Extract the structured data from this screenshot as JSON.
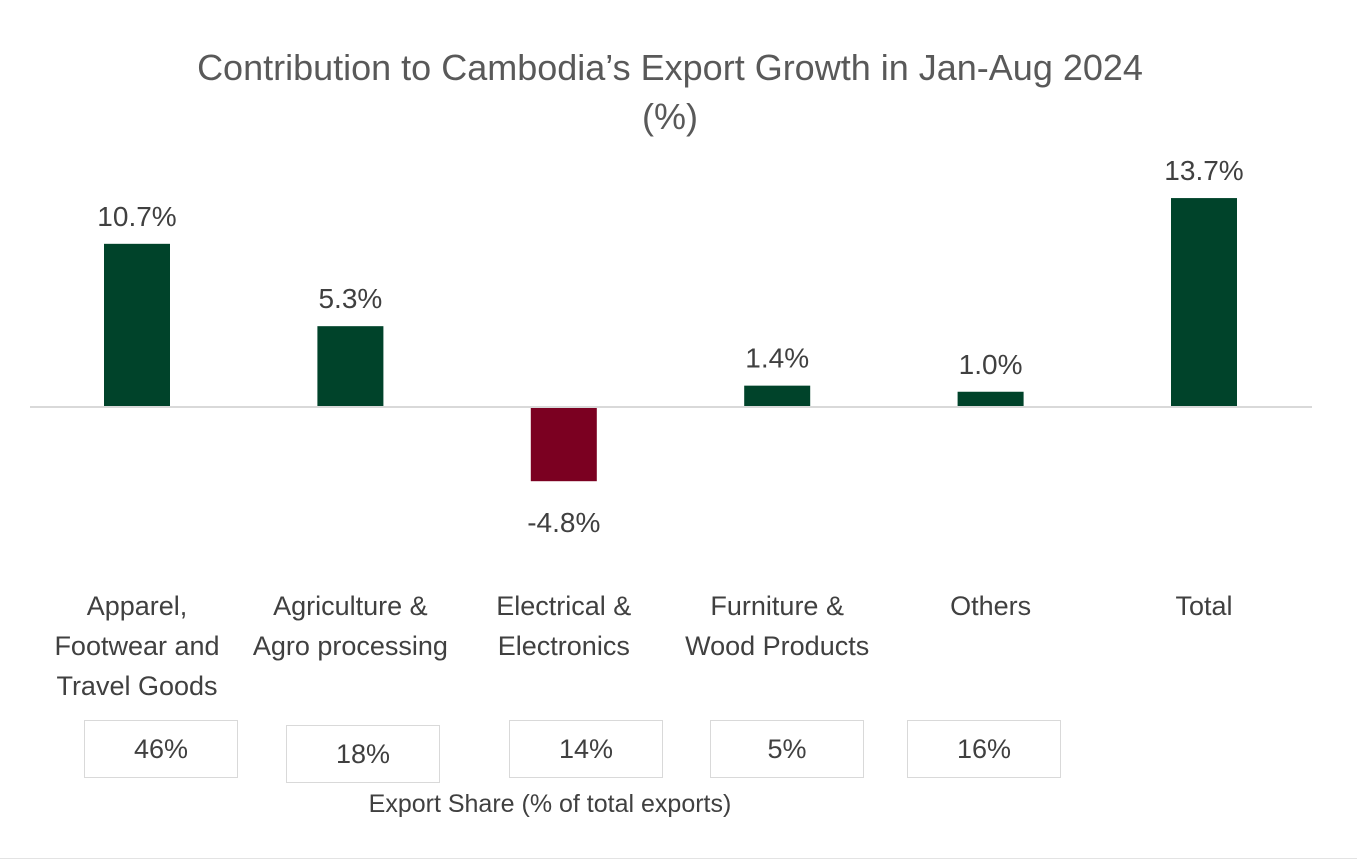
{
  "chart_data": {
    "type": "bar",
    "title_line1": "Contribution to Cambodia’s Export Growth in Jan-Aug 2024",
    "title_line2": "(%)",
    "categories": [
      "Apparel, Footwear and Travel Goods",
      "Agriculture & Agro processing",
      "Electrical & Electronics",
      "Furniture & Wood Products",
      "Others",
      "Total"
    ],
    "category_lines": [
      [
        "Apparel,",
        "Footwear and",
        "Travel Goods"
      ],
      [
        "Agriculture &",
        "Agro processing"
      ],
      [
        "Electrical &",
        "Electronics"
      ],
      [
        "Furniture &",
        "Wood Products"
      ],
      [
        "Others"
      ],
      [
        "Total"
      ]
    ],
    "values": [
      10.7,
      5.3,
      -4.8,
      1.4,
      1.0,
      13.7
    ],
    "data_labels": [
      "10.7%",
      "5.3%",
      "-4.8%",
      "1.4%",
      "1.0%",
      "13.7%"
    ],
    "positive_color": "#00432a",
    "negative_color": "#7b0021",
    "export_share": {
      "title": "Export Share (% of total exports)",
      "values": [
        "46%",
        "18%",
        "14%",
        "5%",
        "16%"
      ]
    },
    "legend": "none",
    "grid": false
  }
}
